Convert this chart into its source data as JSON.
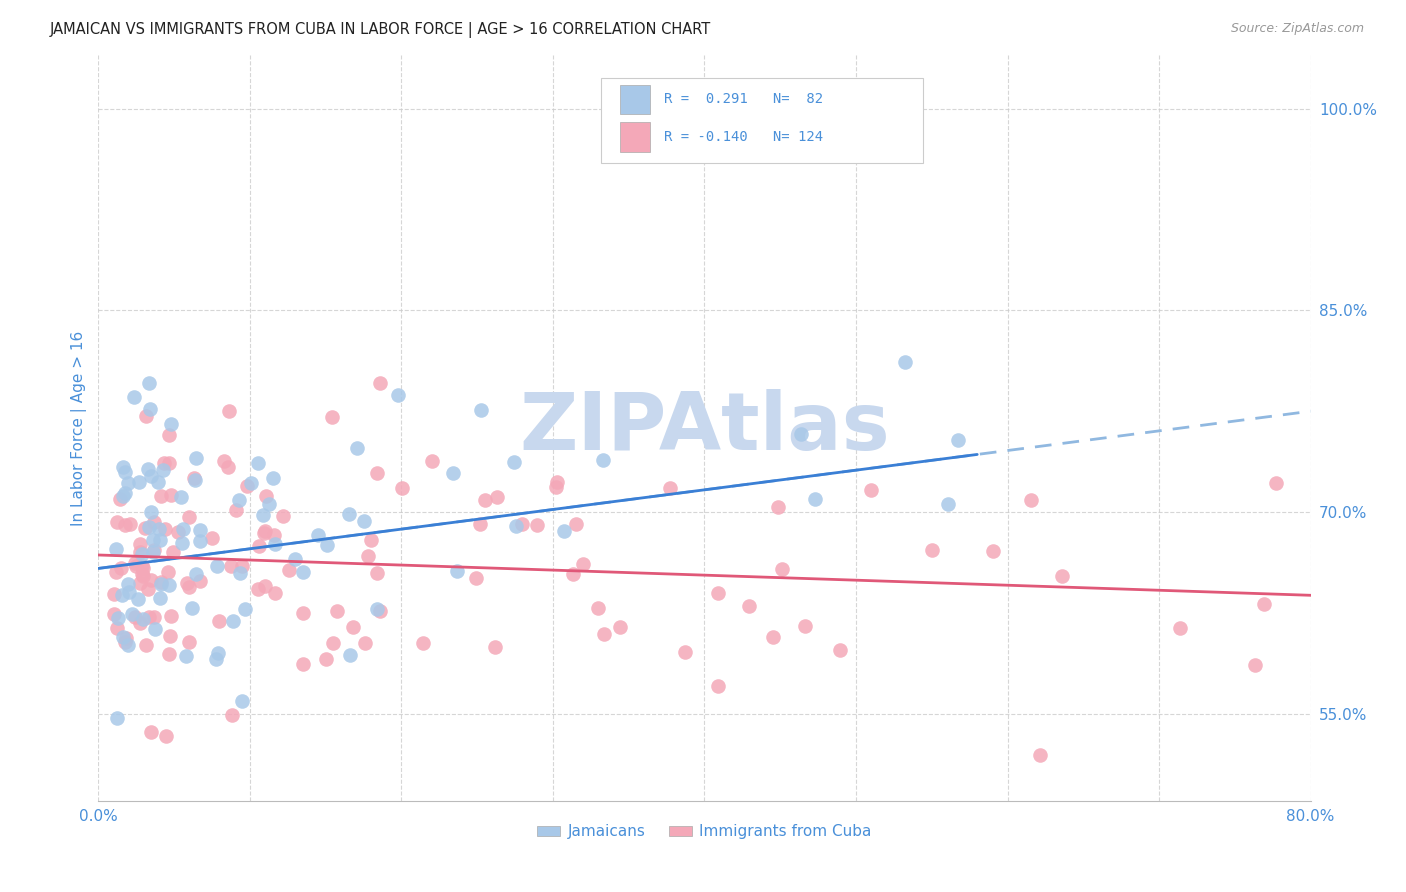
{
  "title": "JAMAICAN VS IMMIGRANTS FROM CUBA IN LABOR FORCE | AGE > 16 CORRELATION CHART",
  "source": "Source: ZipAtlas.com",
  "ylabel": "In Labor Force | Age > 16",
  "xlim": [
    0.0,
    0.8
  ],
  "ylim": [
    0.485,
    1.04
  ],
  "yticks": [
    0.55,
    0.7,
    0.85,
    1.0
  ],
  "ytick_labels": [
    "55.0%",
    "70.0%",
    "85.0%",
    "100.0%"
  ],
  "xticks": [
    0.0,
    0.1,
    0.2,
    0.3,
    0.4,
    0.5,
    0.6,
    0.7,
    0.8
  ],
  "xtick_labels": [
    "0.0%",
    "",
    "",
    "",
    "",
    "",
    "",
    "",
    "80.0%"
  ],
  "blue_color": "#a8c8e8",
  "pink_color": "#f4a8b8",
  "blue_line_color": "#3a7fd5",
  "blue_dash_color": "#90b8e0",
  "pink_line_color": "#e05878",
  "title_color": "#222222",
  "axis_label_color": "#4a90d9",
  "tick_color": "#4a90d9",
  "background_color": "#ffffff",
  "grid_color": "#cccccc",
  "watermark_color": "#c8d8ee",
  "legend_text_color": "#4a90d9",
  "legend_neg_color": "#e05878",
  "blue_r": " 0.291",
  "blue_n": " 82",
  "pink_r": "-0.140",
  "pink_n": "124"
}
